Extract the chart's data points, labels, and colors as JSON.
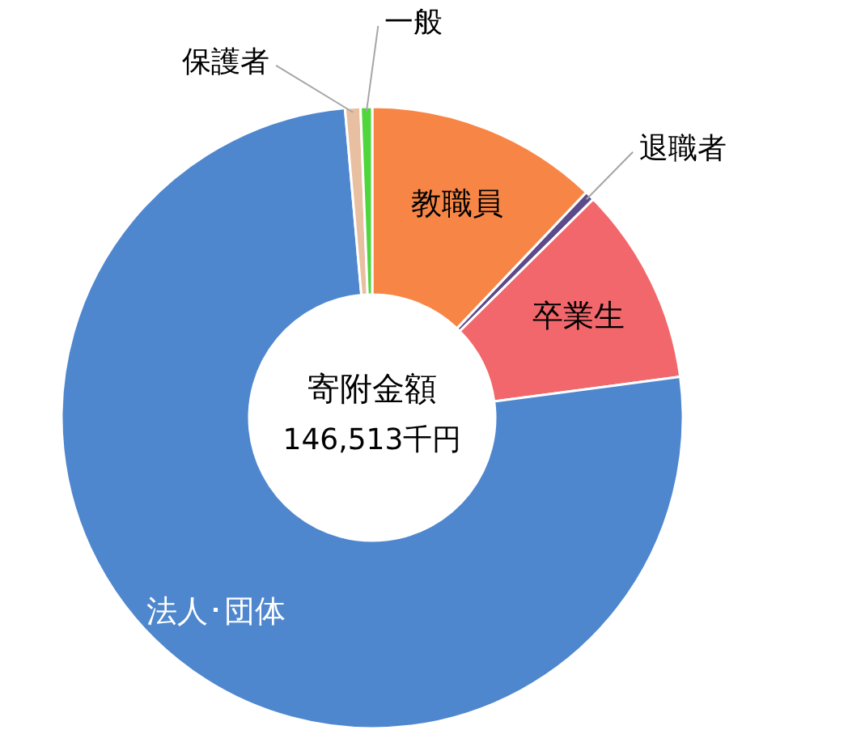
{
  "chart_data": {
    "type": "donut",
    "title": "寄附金額",
    "annotations": [
      "146,513千円"
    ],
    "categories": [
      "教職員",
      "退職者",
      "卒業生",
      "法人･団体",
      "保護者",
      "一般"
    ],
    "values": [
      12.1,
      0.5,
      10.3,
      75.7,
      0.8,
      0.6
    ],
    "colors": [
      "#f78646",
      "#5c4a8c",
      "#f2676b",
      "#4f87cf",
      "#e8bfa0",
      "#4fd63a"
    ]
  }
}
